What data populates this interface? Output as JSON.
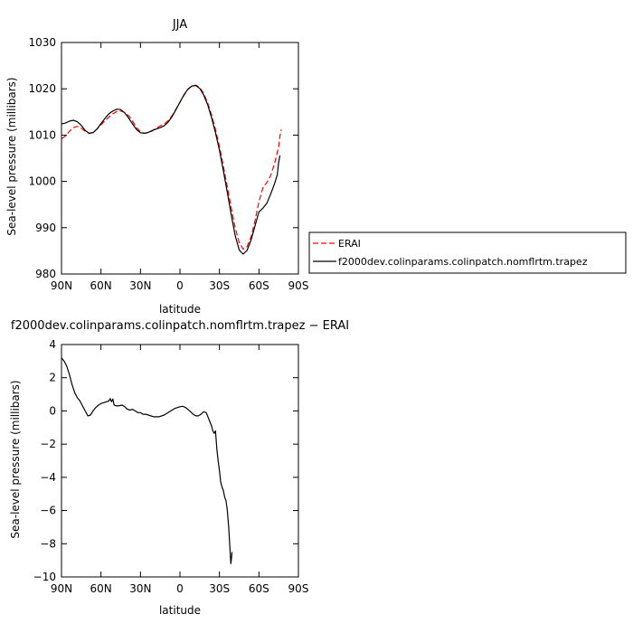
{
  "chart_data": [
    {
      "type": "line",
      "title": "JJA",
      "xlabel": "latitude",
      "ylabel": "Sea-level pressure (millibars)",
      "xlim": [
        90,
        -90
      ],
      "ylim": [
        980,
        1030
      ],
      "x_ticks": [
        {
          "value": 90,
          "label": "90N"
        },
        {
          "value": 60,
          "label": "60N"
        },
        {
          "value": 30,
          "label": "30N"
        },
        {
          "value": 0,
          "label": "0"
        },
        {
          "value": -30,
          "label": "30S"
        },
        {
          "value": -60,
          "label": "60S"
        },
        {
          "value": -90,
          "label": "90S"
        }
      ],
      "y_ticks": [
        {
          "value": 980,
          "label": "980"
        },
        {
          "value": 990,
          "label": "990"
        },
        {
          "value": 1000,
          "label": "1000"
        },
        {
          "value": 1010,
          "label": "1010"
        },
        {
          "value": 1020,
          "label": "1020"
        },
        {
          "value": 1030,
          "label": "1030"
        }
      ],
      "grid": false,
      "legend_position": "right",
      "series": [
        {
          "name": "ERAI",
          "color": "#ff0000",
          "dash": "dashed",
          "points": [
            [
              90,
              1009.2
            ],
            [
              87,
              1009.8
            ],
            [
              84,
              1010.8
            ],
            [
              81,
              1011.6
            ],
            [
              78,
              1011.9
            ],
            [
              75,
              1011.5
            ],
            [
              72,
              1010.8
            ],
            [
              69,
              1010.4
            ],
            [
              66,
              1010.6
            ],
            [
              63,
              1011.3
            ],
            [
              60,
              1012.2
            ],
            [
              57,
              1013.1
            ],
            [
              54,
              1013.9
            ],
            [
              51,
              1014.6
            ],
            [
              48,
              1015.1
            ],
            [
              45,
              1015.2
            ],
            [
              42,
              1014.9
            ],
            [
              39,
              1014.2
            ],
            [
              36,
              1013.0
            ],
            [
              33,
              1011.6
            ],
            [
              30,
              1010.7
            ],
            [
              27,
              1010.4
            ],
            [
              24,
              1010.5
            ],
            [
              21,
              1010.9
            ],
            [
              18,
              1011.5
            ],
            [
              15,
              1012.0
            ],
            [
              12,
              1012.4
            ],
            [
              9,
              1013.1
            ],
            [
              6,
              1014.2
            ],
            [
              3,
              1015.6
            ],
            [
              0,
              1017.1
            ],
            [
              -3,
              1018.6
            ],
            [
              -6,
              1019.8
            ],
            [
              -9,
              1020.6
            ],
            [
              -12,
              1020.8
            ],
            [
              -15,
              1020.3
            ],
            [
              -18,
              1019.0
            ],
            [
              -21,
              1017.0
            ],
            [
              -24,
              1014.4
            ],
            [
              -27,
              1011.2
            ],
            [
              -30,
              1007.5
            ],
            [
              -33,
              1003.3
            ],
            [
              -36,
              998.8
            ],
            [
              -39,
              994.2
            ],
            [
              -42,
              990.0
            ],
            [
              -45,
              986.8
            ],
            [
              -48,
              985.4
            ],
            [
              -51,
              985.9
            ],
            [
              -54,
              988.0
            ],
            [
              -57,
              991.5
            ],
            [
              -60,
              995.6
            ],
            [
              -63,
              998.6
            ],
            [
              -66,
              999.8
            ],
            [
              -69,
              1001.3
            ],
            [
              -72,
              1004.0
            ],
            [
              -75,
              1007.5
            ],
            [
              -76,
              1009.8
            ],
            [
              -77,
              1011.2
            ]
          ]
        },
        {
          "name": "f2000dev.colinparams.colinpatch.nomflrtm.trapez",
          "color": "#000000",
          "dash": "solid",
          "points": [
            [
              90,
              1012.4
            ],
            [
              87,
              1012.6
            ],
            [
              84,
              1013.0
            ],
            [
              81,
              1013.2
            ],
            [
              78,
              1012.9
            ],
            [
              75,
              1012.1
            ],
            [
              72,
              1011.0
            ],
            [
              69,
              1010.4
            ],
            [
              66,
              1010.5
            ],
            [
              63,
              1011.3
            ],
            [
              60,
              1012.5
            ],
            [
              57,
              1013.6
            ],
            [
              54,
              1014.6
            ],
            [
              51,
              1015.2
            ],
            [
              48,
              1015.6
            ],
            [
              45,
              1015.5
            ],
            [
              42,
              1014.8
            ],
            [
              39,
              1013.7
            ],
            [
              36,
              1012.4
            ],
            [
              33,
              1011.2
            ],
            [
              30,
              1010.5
            ],
            [
              27,
              1010.4
            ],
            [
              24,
              1010.6
            ],
            [
              21,
              1011.0
            ],
            [
              18,
              1011.3
            ],
            [
              15,
              1011.6
            ],
            [
              12,
              1012.0
            ],
            [
              9,
              1012.8
            ],
            [
              6,
              1014.0
            ],
            [
              3,
              1015.5
            ],
            [
              0,
              1017.1
            ],
            [
              -3,
              1018.7
            ],
            [
              -6,
              1019.9
            ],
            [
              -9,
              1020.6
            ],
            [
              -12,
              1020.7
            ],
            [
              -15,
              1020.1
            ],
            [
              -18,
              1018.7
            ],
            [
              -21,
              1016.6
            ],
            [
              -24,
              1013.8
            ],
            [
              -27,
              1010.5
            ],
            [
              -30,
              1006.7
            ],
            [
              -33,
              1002.3
            ],
            [
              -36,
              997.6
            ],
            [
              -39,
              992.7
            ],
            [
              -42,
              988.3
            ],
            [
              -45,
              985.2
            ],
            [
              -48,
              984.3
            ],
            [
              -51,
              985.1
            ],
            [
              -54,
              987.3
            ],
            [
              -57,
              990.4
            ],
            [
              -60,
              993.4
            ],
            [
              -63,
              994.2
            ],
            [
              -66,
              995.3
            ],
            [
              -69,
              997.3
            ],
            [
              -72,
              999.6
            ],
            [
              -74,
              1001.5
            ],
            [
              -75,
              1004.2
            ],
            [
              -76,
              1005.6
            ]
          ]
        }
      ]
    },
    {
      "type": "line",
      "title": "f2000dev.colinparams.colinpatch.nomflrtm.trapez − ERAI",
      "xlabel": "latitude",
      "ylabel": "Sea-level pressure (millibars)",
      "xlim": [
        90,
        -90
      ],
      "ylim": [
        -10,
        4
      ],
      "x_ticks": [
        {
          "value": 90,
          "label": "90N"
        },
        {
          "value": 60,
          "label": "60N"
        },
        {
          "value": 30,
          "label": "30N"
        },
        {
          "value": 0,
          "label": "0"
        },
        {
          "value": -30,
          "label": "30S"
        },
        {
          "value": -60,
          "label": "60S"
        },
        {
          "value": -90,
          "label": "90S"
        }
      ],
      "y_ticks": [
        {
          "value": 4,
          "label": "4"
        },
        {
          "value": 2,
          "label": "2"
        },
        {
          "value": 0,
          "label": "0"
        },
        {
          "value": -2,
          "label": "−2"
        },
        {
          "value": -4,
          "label": "−4"
        },
        {
          "value": -6,
          "label": "−6"
        },
        {
          "value": -8,
          "label": "−8"
        },
        {
          "value": -10,
          "label": "−10"
        }
      ],
      "grid": false,
      "series": [
        {
          "color": "#000000",
          "dash": "solid",
          "points": [
            [
              90,
              3.2
            ],
            [
              88,
              3.0
            ],
            [
              86,
              2.7
            ],
            [
              84,
              2.2
            ],
            [
              82,
              1.6
            ],
            [
              80,
              1.1
            ],
            [
              78,
              0.8
            ],
            [
              76,
              0.6
            ],
            [
              74,
              0.3
            ],
            [
              72,
              0.0
            ],
            [
              70,
              -0.3
            ],
            [
              68,
              -0.25
            ],
            [
              66,
              0.0
            ],
            [
              64,
              0.2
            ],
            [
              62,
              0.35
            ],
            [
              60,
              0.45
            ],
            [
              58,
              0.5
            ],
            [
              56,
              0.55
            ],
            [
              54,
              0.6
            ],
            [
              53,
              0.75
            ],
            [
              52,
              0.55
            ],
            [
              51,
              0.72
            ],
            [
              50,
              0.35
            ],
            [
              48,
              0.3
            ],
            [
              46,
              0.32
            ],
            [
              44,
              0.35
            ],
            [
              42,
              0.25
            ],
            [
              40,
              0.1
            ],
            [
              38,
              0.05
            ],
            [
              36,
              0.1
            ],
            [
              34,
              0.0
            ],
            [
              32,
              -0.1
            ],
            [
              30,
              -0.1
            ],
            [
              28,
              -0.2
            ],
            [
              26,
              -0.2
            ],
            [
              24,
              -0.25
            ],
            [
              20,
              -0.35
            ],
            [
              16,
              -0.35
            ],
            [
              12,
              -0.25
            ],
            [
              8,
              -0.05
            ],
            [
              4,
              0.15
            ],
            [
              0,
              0.25
            ],
            [
              -2,
              0.28
            ],
            [
              -4,
              0.22
            ],
            [
              -6,
              0.1
            ],
            [
              -8,
              -0.05
            ],
            [
              -10,
              -0.2
            ],
            [
              -12,
              -0.3
            ],
            [
              -14,
              -0.3
            ],
            [
              -16,
              -0.2
            ],
            [
              -18,
              -0.05
            ],
            [
              -20,
              -0.1
            ],
            [
              -22,
              -0.5
            ],
            [
              -24,
              -0.9
            ],
            [
              -25,
              -1.2
            ],
            [
              -26,
              -1.35
            ],
            [
              -27,
              -1.2
            ],
            [
              -28,
              -2.3
            ],
            [
              -29,
              -3.0
            ],
            [
              -30,
              -3.6
            ],
            [
              -31,
              -4.3
            ],
            [
              -32,
              -4.6
            ],
            [
              -33,
              -4.8
            ],
            [
              -34,
              -5.2
            ],
            [
              -35,
              -5.4
            ],
            [
              -36,
              -6.0
            ],
            [
              -37,
              -7.0
            ],
            [
              -38,
              -8.3
            ],
            [
              -38.7,
              -9.2
            ],
            [
              -39.2,
              -8.8
            ],
            [
              -39.6,
              -8.5
            ]
          ]
        }
      ]
    }
  ]
}
